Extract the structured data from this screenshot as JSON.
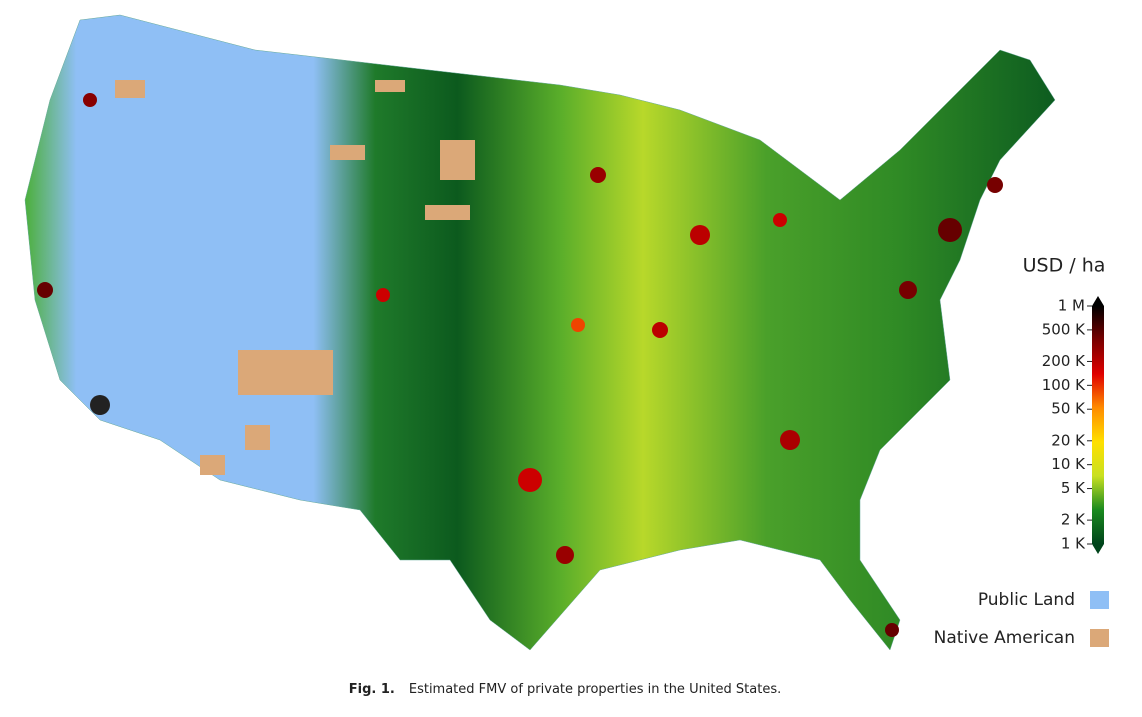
{
  "map": {
    "colorbar": {
      "title": "USD / ha",
      "scale": "log",
      "lim": [
        1000,
        1000000
      ],
      "colors": [
        "#00441b",
        "#1a8a1f",
        "#c9e020",
        "#ffe000",
        "#ff8c00",
        "#e00000",
        "#7a0000",
        "#000000"
      ],
      "ticks": [
        {
          "value": 1000000,
          "label": "1 M"
        },
        {
          "value": 500000,
          "label": "500 K"
        },
        {
          "value": 200000,
          "label": "200 K"
        },
        {
          "value": 100000,
          "label": "100 K"
        },
        {
          "value": 50000,
          "label": "50 K"
        },
        {
          "value": 20000,
          "label": "20 K"
        },
        {
          "value": 10000,
          "label": "10 K"
        },
        {
          "value": 5000,
          "label": "5 K"
        },
        {
          "value": 2000,
          "label": "2 K"
        },
        {
          "value": 1000,
          "label": "1 K"
        }
      ]
    },
    "legend": [
      {
        "label": "Public Land",
        "color": "#8fbff5"
      },
      {
        "label": "Native American",
        "color": "#dba878"
      }
    ]
  },
  "caption": {
    "label": "Fig. 1.",
    "text": "Estimated FMV of private properties in the United States."
  }
}
